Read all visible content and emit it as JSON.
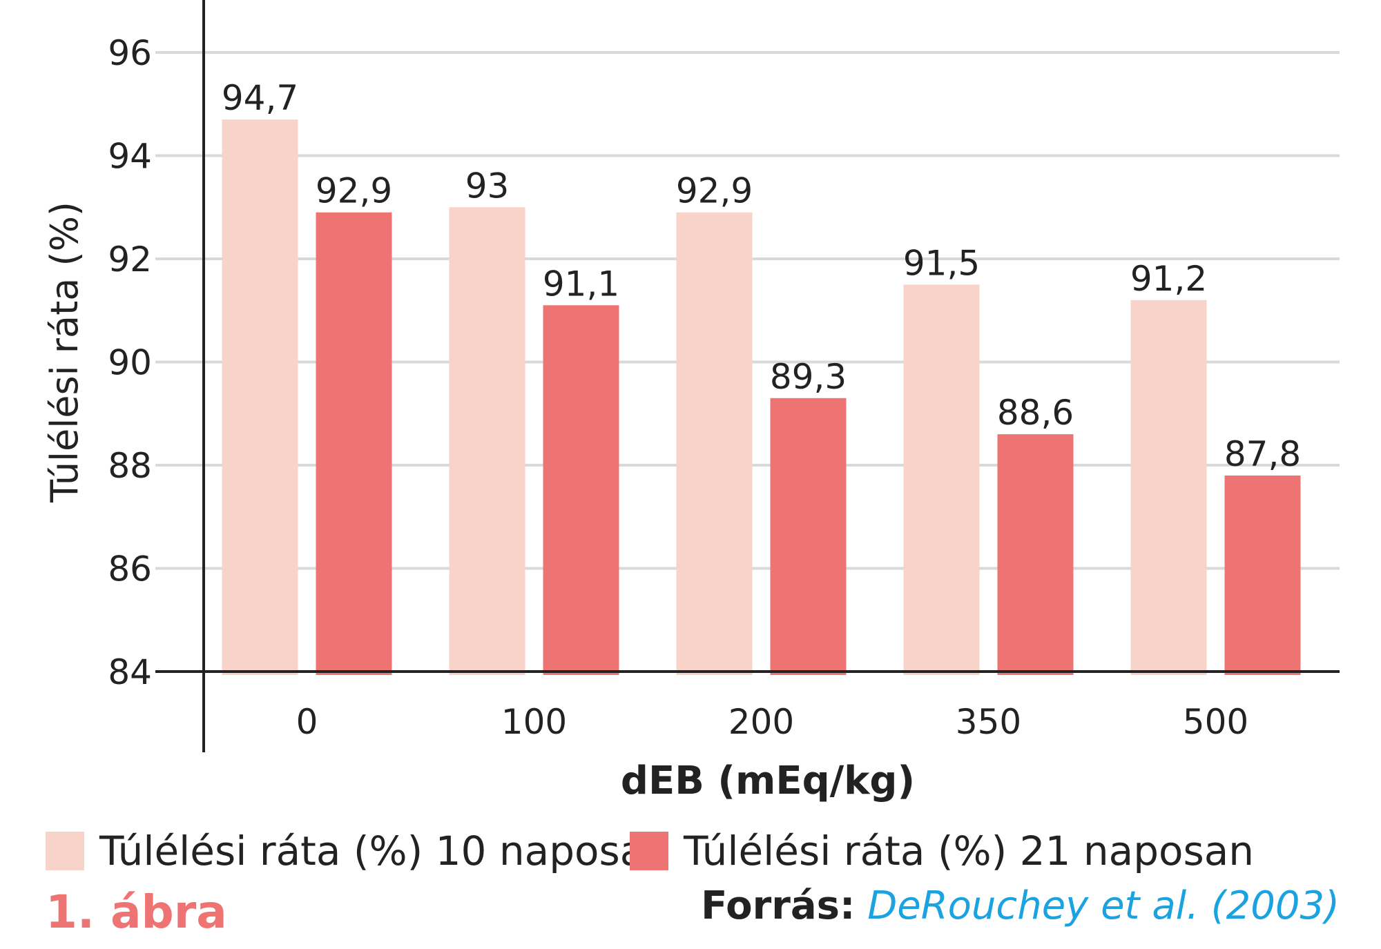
{
  "chart_data": {
    "type": "bar",
    "categories": [
      "0",
      "100",
      "200",
      "350",
      "500"
    ],
    "series": [
      {
        "name": "Túlélési ráta (%) 10 naposan",
        "values": [
          94.7,
          93,
          92.9,
          91.5,
          91.2
        ],
        "labels": [
          "94,7",
          "93",
          "92,9",
          "91,5",
          "91,2"
        ],
        "color": "#f8d3ca"
      },
      {
        "name": "Túlélési ráta (%) 21 naposan",
        "values": [
          92.9,
          91.1,
          89.3,
          88.6,
          87.8
        ],
        "labels": [
          "92,9",
          "91,1",
          "89,3",
          "88,6",
          "87,8"
        ],
        "color": "#ee7474"
      }
    ],
    "xlabel": "dEB (mEq/kg)",
    "ylabel": "Túlélési ráta (%)",
    "ylim": [
      84,
      96
    ],
    "yticks": [
      84,
      86,
      88,
      90,
      92,
      94,
      96
    ],
    "grid": true,
    "legend_position": "bottom"
  },
  "figure_label": "1. ábra",
  "source": {
    "prefix": "Forrás:",
    "citation": "DeRouchey et al. (2003)"
  }
}
